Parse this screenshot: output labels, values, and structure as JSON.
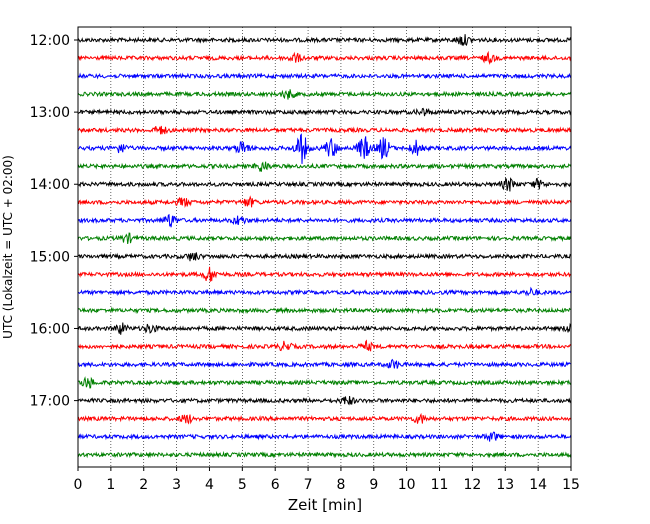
{
  "chart_data": {
    "type": "line",
    "title": "",
    "xlabel": "Zeit  [min]",
    "ylabel": "UTC (Lokalzeit = UTC + 02:00)",
    "xlim": [
      0,
      15
    ],
    "x_ticks": [
      0,
      1,
      2,
      3,
      4,
      5,
      6,
      7,
      8,
      9,
      10,
      11,
      12,
      13,
      14,
      15
    ],
    "vertical_grid": true,
    "grid_style": "dotted",
    "y_ticks": [
      {
        "label": "12:00",
        "trace_index": 0
      },
      {
        "label": "13:00",
        "trace_index": 4
      },
      {
        "label": "14:00",
        "trace_index": 8
      },
      {
        "label": "15:00",
        "trace_index": 12
      },
      {
        "label": "16:00",
        "trace_index": 16
      },
      {
        "label": "17:00",
        "trace_index": 20
      }
    ],
    "trace_interval_min": 15,
    "color_cycle": [
      "#000000",
      "#ff0000",
      "#0000ff",
      "#008000"
    ],
    "traces": [
      {
        "start": "12:00",
        "color": "#000000",
        "bursts": [
          {
            "x": 11.7,
            "amp": 5
          }
        ]
      },
      {
        "start": "12:15",
        "color": "#ff0000",
        "bursts": [
          {
            "x": 6.6,
            "amp": 4
          },
          {
            "x": 12.5,
            "amp": 4
          }
        ]
      },
      {
        "start": "12:30",
        "color": "#0000ff",
        "bursts": []
      },
      {
        "start": "12:45",
        "color": "#008000",
        "bursts": [
          {
            "x": 6.4,
            "amp": 4
          }
        ]
      },
      {
        "start": "13:00",
        "color": "#000000",
        "bursts": [
          {
            "x": 10.5,
            "amp": 3
          }
        ]
      },
      {
        "start": "13:15",
        "color": "#ff0000",
        "bursts": [
          {
            "x": 2.5,
            "amp": 4
          }
        ]
      },
      {
        "start": "13:30",
        "color": "#0000ff",
        "bursts": [
          {
            "x": 1.3,
            "amp": 4
          },
          {
            "x": 5.0,
            "amp": 6
          },
          {
            "x": 6.8,
            "amp": 14
          },
          {
            "x": 7.7,
            "amp": 9
          },
          {
            "x": 8.7,
            "amp": 11
          },
          {
            "x": 9.3,
            "amp": 10
          },
          {
            "x": 10.3,
            "amp": 7
          }
        ]
      },
      {
        "start": "13:45",
        "color": "#008000",
        "bursts": [
          {
            "x": 5.6,
            "amp": 5
          }
        ]
      },
      {
        "start": "14:00",
        "color": "#000000",
        "bursts": [
          {
            "x": 13.1,
            "amp": 6
          },
          {
            "x": 14.0,
            "amp": 4
          }
        ]
      },
      {
        "start": "14:15",
        "color": "#ff0000",
        "bursts": [
          {
            "x": 3.2,
            "amp": 4
          },
          {
            "x": 5.2,
            "amp": 4
          }
        ]
      },
      {
        "start": "14:30",
        "color": "#0000ff",
        "bursts": [
          {
            "x": 2.8,
            "amp": 6
          },
          {
            "x": 4.9,
            "amp": 4
          }
        ]
      },
      {
        "start": "14:45",
        "color": "#008000",
        "bursts": [
          {
            "x": 1.5,
            "amp": 4
          }
        ]
      },
      {
        "start": "15:00",
        "color": "#000000",
        "bursts": [
          {
            "x": 3.5,
            "amp": 4
          }
        ]
      },
      {
        "start": "15:15",
        "color": "#ff0000",
        "bursts": [
          {
            "x": 4.0,
            "amp": 7
          }
        ]
      },
      {
        "start": "15:30",
        "color": "#0000ff",
        "bursts": [
          {
            "x": 13.8,
            "amp": 3
          }
        ]
      },
      {
        "start": "15:45",
        "color": "#008000",
        "bursts": []
      },
      {
        "start": "16:00",
        "color": "#000000",
        "bursts": [
          {
            "x": 1.3,
            "amp": 5
          },
          {
            "x": 2.2,
            "amp": 4
          },
          {
            "x": 15.0,
            "amp": 4
          }
        ]
      },
      {
        "start": "16:15",
        "color": "#ff0000",
        "bursts": [
          {
            "x": 6.3,
            "amp": 4
          },
          {
            "x": 8.8,
            "amp": 4
          }
        ]
      },
      {
        "start": "16:30",
        "color": "#0000ff",
        "bursts": [
          {
            "x": 9.6,
            "amp": 4
          }
        ]
      },
      {
        "start": "16:45",
        "color": "#008000",
        "bursts": [
          {
            "x": 0.3,
            "amp": 5
          }
        ]
      },
      {
        "start": "17:00",
        "color": "#000000",
        "bursts": [
          {
            "x": 8.2,
            "amp": 4
          }
        ]
      },
      {
        "start": "17:15",
        "color": "#ff0000",
        "bursts": [
          {
            "x": 3.3,
            "amp": 4
          },
          {
            "x": 10.4,
            "amp": 4
          }
        ]
      },
      {
        "start": "17:30",
        "color": "#0000ff",
        "bursts": [
          {
            "x": 12.6,
            "amp": 4
          }
        ]
      },
      {
        "start": "17:45",
        "color": "#008000",
        "bursts": []
      }
    ]
  }
}
